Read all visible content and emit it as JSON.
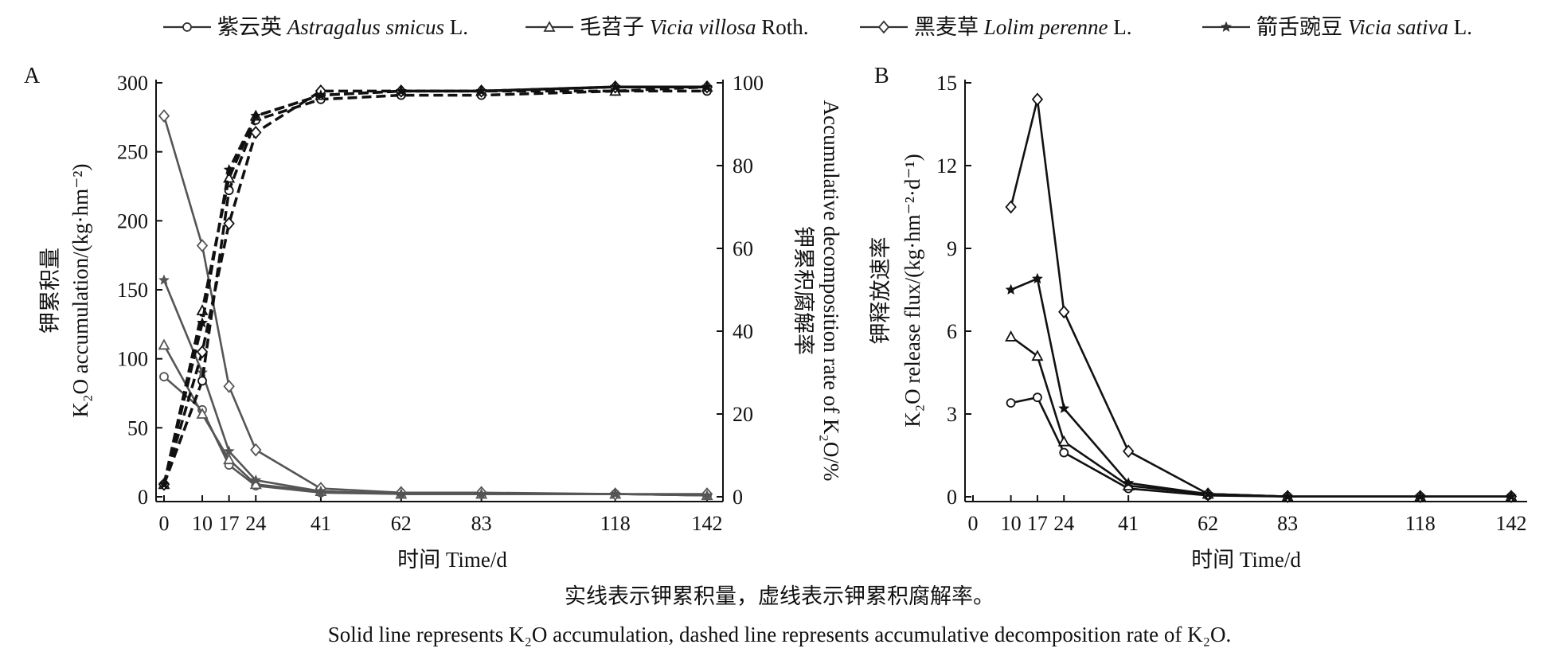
{
  "legend": [
    {
      "zh": "紫云英",
      "latin": "Astragalus smicus",
      "author": "L.",
      "marker": "circle"
    },
    {
      "zh": "毛苕子",
      "latin": "Vicia villosa",
      "author": "Roth.",
      "marker": "triangle"
    },
    {
      "zh": "黑麦草",
      "latin": "Lolim perenne",
      "author": "L.",
      "marker": "diamond"
    },
    {
      "zh": "箭舌豌豆",
      "latin": "Vicia sativa",
      "author": "L.",
      "marker": "star"
    }
  ],
  "caption_zh": "实线表示钾累积量，虚线表示钾累积腐解率。",
  "caption_en": "Solid line represents K₂O accumulation, dashed line represents accumulative decomposition rate of K₂O.",
  "colors": {
    "solid_A": "#555555",
    "dashed": "#111111",
    "solid_B": "#111111"
  },
  "chart_data": [
    {
      "panel": "A",
      "type": "line",
      "xlabel": "时间 Time/d",
      "ylabel_zh": "钾累积量",
      "ylabel_en": "K₂O accumulation/(kg·hm⁻²)",
      "y2label_zh": "钾累积腐解率",
      "y2label_en": "Accumulative decomposition rate of K₂O/%",
      "x_ticks": [
        0,
        10,
        17,
        24,
        41,
        62,
        83,
        118,
        142
      ],
      "y_ticks": [
        0,
        50,
        100,
        150,
        200,
        250,
        300
      ],
      "y2_ticks": [
        0,
        20,
        40,
        60,
        80,
        100
      ],
      "xlim": [
        0,
        142
      ],
      "ylim": [
        0,
        300
      ],
      "y2lim": [
        0,
        100
      ],
      "x": [
        0,
        10,
        17,
        24,
        41,
        62,
        83,
        118,
        142
      ],
      "series": [
        {
          "marker": "circle",
          "axis": "left",
          "style": "solid",
          "values": [
            87,
            63,
            23,
            8,
            3,
            2,
            2,
            2,
            1
          ]
        },
        {
          "marker": "triangle",
          "axis": "left",
          "style": "solid",
          "values": [
            110,
            60,
            27,
            9,
            4,
            2,
            2,
            2,
            1
          ]
        },
        {
          "marker": "diamond",
          "axis": "left",
          "style": "solid",
          "values": [
            276,
            182,
            80,
            34,
            6,
            3,
            3,
            2,
            2
          ]
        },
        {
          "marker": "star",
          "axis": "left",
          "style": "solid",
          "values": [
            157,
            90,
            33,
            12,
            4,
            2,
            2,
            2,
            1
          ]
        },
        {
          "marker": "circle",
          "axis": "right",
          "style": "dashed",
          "values": [
            3,
            28,
            74,
            91,
            96,
            97,
            97,
            98,
            98
          ]
        },
        {
          "marker": "triangle",
          "axis": "right",
          "style": "dashed",
          "values": [
            3,
            45,
            77,
            92,
            97,
            98,
            98,
            98,
            99
          ]
        },
        {
          "marker": "diamond",
          "axis": "right",
          "style": "dashed",
          "values": [
            3,
            35,
            66,
            88,
            98,
            98,
            98,
            99,
            99
          ]
        },
        {
          "marker": "star",
          "axis": "right",
          "style": "dashed",
          "values": [
            3,
            42,
            79,
            92,
            97,
            98,
            98,
            99,
            99
          ]
        }
      ]
    },
    {
      "panel": "B",
      "type": "line",
      "xlabel": "时间 Time/d",
      "ylabel_zh": "钾释放速率",
      "ylabel_en": "K₂O release flux/(kg·hm⁻²·d⁻¹)",
      "x_ticks": [
        0,
        10,
        17,
        24,
        41,
        62,
        83,
        118,
        142
      ],
      "y_ticks": [
        0,
        3,
        6,
        9,
        12,
        15
      ],
      "xlim": [
        0,
        142
      ],
      "ylim": [
        0,
        15
      ],
      "x": [
        10,
        17,
        24,
        41,
        62,
        83,
        118,
        142
      ],
      "series": [
        {
          "marker": "circle",
          "style": "solid",
          "values": [
            3.4,
            3.6,
            1.6,
            0.3,
            0.05,
            0.01,
            0.01,
            0.01
          ]
        },
        {
          "marker": "triangle",
          "style": "solid",
          "values": [
            5.8,
            5.1,
            2.0,
            0.4,
            0.1,
            0.01,
            0.01,
            0.01
          ]
        },
        {
          "marker": "diamond",
          "style": "solid",
          "values": [
            10.5,
            14.4,
            6.7,
            1.65,
            0.1,
            0.01,
            0.01,
            0.01
          ]
        },
        {
          "marker": "star",
          "style": "solid",
          "values": [
            7.5,
            7.9,
            3.2,
            0.5,
            0.1,
            0.01,
            0.01,
            0.01
          ]
        }
      ]
    }
  ]
}
